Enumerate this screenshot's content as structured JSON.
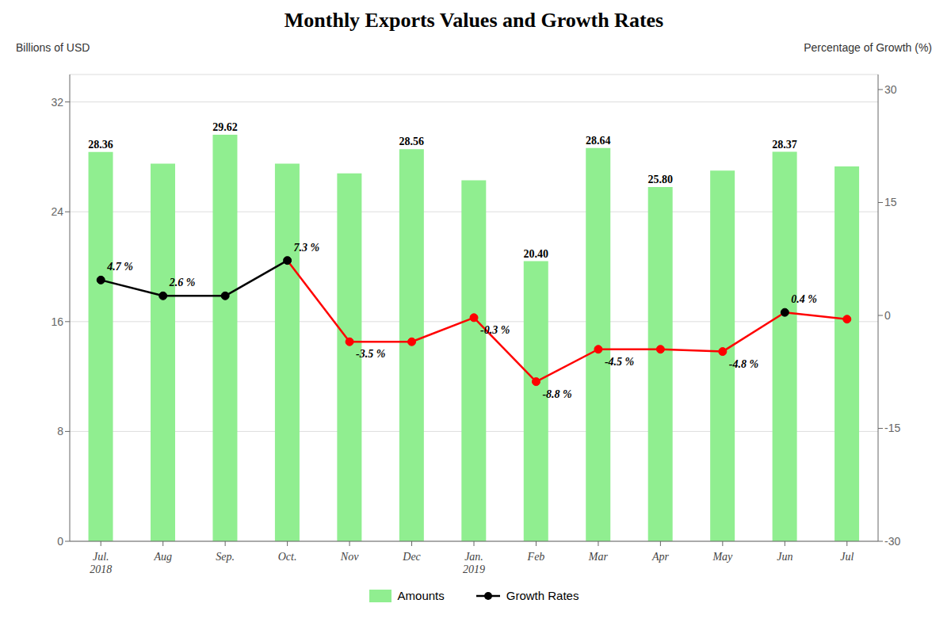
{
  "chart_data": {
    "type": "bar",
    "title": "Monthly Exports Values and Growth Rates",
    "y_label": "Billions of USD",
    "y2_label": "Percentage of Growth (%)",
    "categories": [
      "Jul.\n2018",
      "Aug",
      "Sep.",
      "Oct.",
      "Nov",
      "Dec",
      "Jan.\n2019",
      "Feb",
      "Mar",
      "Apr",
      "May",
      "Jun",
      "Jul"
    ],
    "ylim": [
      0,
      34
    ],
    "yticks": [
      0,
      8,
      16,
      24,
      32
    ],
    "y2lim": [
      -30,
      32
    ],
    "y2ticks": [
      -30,
      -15,
      0,
      15,
      30
    ],
    "grid": true,
    "legend": "bottom",
    "series": [
      {
        "name": "Amounts",
        "type": "bar",
        "color": "#90EE90",
        "values": [
          28.36,
          27.5,
          29.62,
          27.5,
          26.8,
          28.56,
          26.3,
          20.4,
          28.64,
          25.8,
          27.0,
          28.37,
          27.3
        ],
        "value_labels": [
          "28.36",
          null,
          "29.62",
          null,
          null,
          "28.56",
          null,
          "20.40",
          "28.64",
          "25.80",
          null,
          "28.37",
          null
        ]
      },
      {
        "name": "Growth Rates",
        "type": "line",
        "axis": "y2",
        "color": "black",
        "marker": "circle",
        "colors": [
          "black",
          "black",
          "black",
          "black",
          "red",
          "red",
          "red",
          "red",
          "red",
          "red",
          "red",
          "black",
          "red"
        ],
        "segment_colors": [
          "black",
          "black",
          "black",
          "red",
          "red",
          "red",
          "red",
          "red",
          "red",
          "red",
          "red",
          "red"
        ],
        "values": [
          4.7,
          2.6,
          2.6,
          7.3,
          -3.5,
          -3.5,
          -0.3,
          -8.8,
          -4.5,
          -4.5,
          -4.8,
          0.4,
          -0.5
        ],
        "value_labels": [
          "4.7 %",
          "2.6 %",
          null,
          "7.3 %",
          "-3.5 %",
          null,
          "-0.3 %",
          "-8.8 %",
          "-4.5 %",
          null,
          "-4.8 %",
          "0.4 %",
          null
        ]
      }
    ]
  }
}
